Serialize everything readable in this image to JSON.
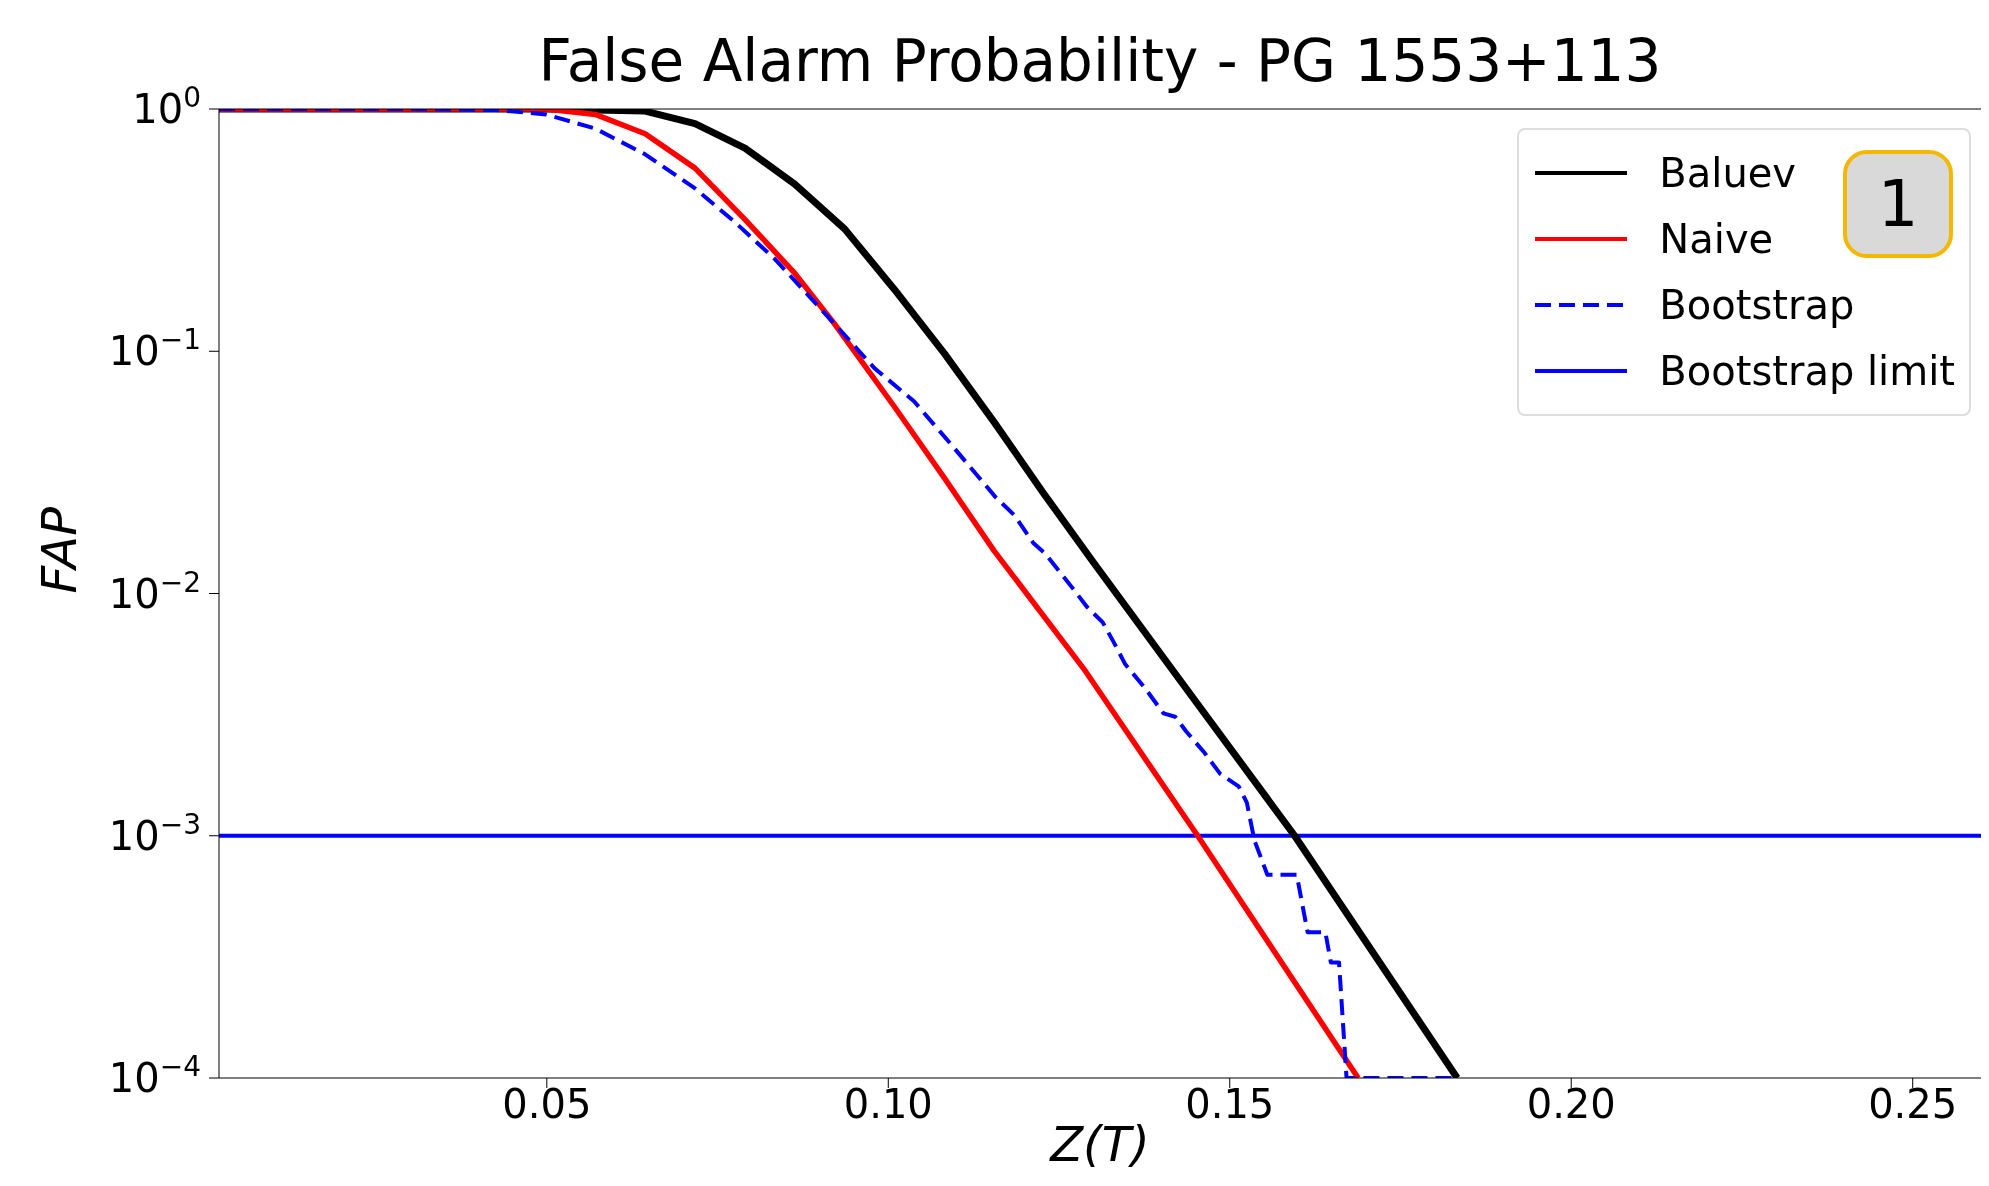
{
  "chart_data": {
    "type": "line",
    "title": "False Alarm Probability - PG 1553+113",
    "xlabel": "Z(T)",
    "ylabel": "FAP",
    "log": "y",
    "legend": "top right",
    "xlim": [
      0.002,
      0.26
    ],
    "ylim": [
      0.0001,
      1
    ],
    "xticks": [
      0.05,
      {
        "value": 0.1,
        "label": "0.10"
      },
      0.15,
      {
        "value": 0.2,
        "label": "0.20"
      },
      0.25
    ],
    "yticks": [
      {
        "value": 1,
        "label": "10$^{0}$"
      },
      {
        "value": 0.1,
        "label": "10$^{−1}$"
      },
      {
        "value": 0.01,
        "label": "10$^{−2}$"
      },
      {
        "value": 0.001,
        "label": "10$^{−3}$"
      },
      {
        "value": 0.0001,
        "label": "10$^{−4}$"
      }
    ],
    "series": [
      {
        "name": "Baluev",
        "color": "#000000",
        "line_style": "solid",
        "x": [
          0.002,
          0.03,
          0.05,
          0.0571,
          0.0644,
          0.0717,
          0.079,
          0.0863,
          0.0936,
          0.1009,
          0.1082,
          0.1155,
          0.1227,
          0.13,
          0.1417,
          0.1595,
          0.1833
        ],
        "values": [
          1,
          1,
          1,
          0.99,
          0.98,
          0.87,
          0.69,
          0.49,
          0.32,
          0.18,
          0.098,
          0.051,
          0.026,
          0.0135,
          0.0048,
          0.001,
          0.0001
        ]
      },
      {
        "name": "Naive",
        "color": "#ff0000",
        "line_style": "solid",
        "x": [
          0.002,
          0.03,
          0.0499,
          0.0571,
          0.0644,
          0.0717,
          0.079,
          0.0863,
          0.0921,
          0.1009,
          0.1082,
          0.1155,
          0.1286,
          0.1453,
          0.1688
        ],
        "values": [
          1,
          1,
          1,
          0.95,
          0.79,
          0.57,
          0.35,
          0.21,
          0.13,
          0.059,
          0.03,
          0.015,
          0.0049,
          0.001,
          0.0001
        ]
      },
      {
        "name": "Bootstrap",
        "color": "#0000ff",
        "line_style": "dashed",
        "x": [
          0.002,
          0.03,
          0.0426,
          0.0499,
          0.0571,
          0.0644,
          0.0717,
          0.0776,
          0.0834,
          0.0921,
          0.098,
          0.1038,
          0.1096,
          0.1157,
          0.1185,
          0.1212,
          0.123,
          0.1269,
          0.1291,
          0.1314,
          0.133,
          0.1347,
          0.1375,
          0.1403,
          0.142,
          0.1436,
          0.1463,
          0.1486,
          0.1513,
          0.1525,
          0.1536,
          0.1555,
          0.1598,
          0.1614,
          0.164,
          0.1648,
          0.166,
          0.1671,
          0.1833
        ],
        "values": [
          1,
          1,
          0.99,
          0.95,
          0.83,
          0.65,
          0.47,
          0.34,
          0.24,
          0.13,
          0.085,
          0.062,
          0.04,
          0.025,
          0.021,
          0.0162,
          0.0146,
          0.0106,
          0.0088,
          0.0076,
          0.0063,
          0.0051,
          0.0041,
          0.0032,
          0.0031,
          0.0027,
          0.0022,
          0.0018,
          0.0016,
          0.00137,
          0.00096,
          0.00069,
          0.00069,
          0.0004,
          0.0004,
          0.0003,
          0.0003,
          0.0001,
          0.0001
        ]
      }
    ],
    "ref_lines": [
      {
        "axis": "y",
        "value": 0.001,
        "label": "Bootstrap limit",
        "color": "#0000ff",
        "line_style": "solid"
      }
    ],
    "annotations": [
      "1"
    ]
  }
}
